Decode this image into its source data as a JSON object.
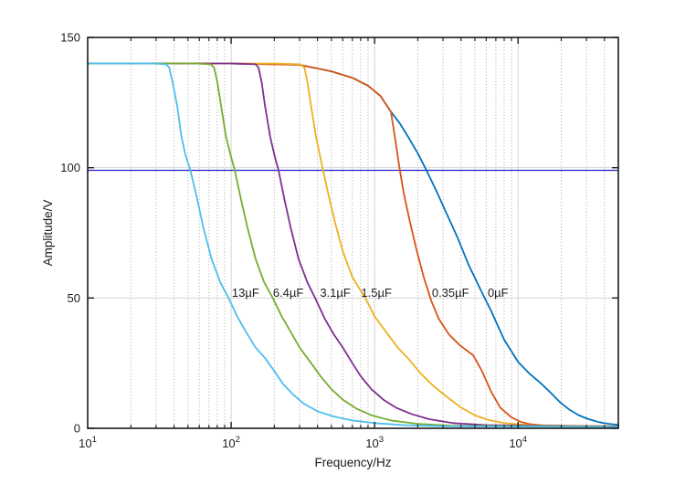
{
  "figure": {
    "background": "#ffffff",
    "axis_color": "#1a1a1a",
    "text_color": "#1c1c1c"
  },
  "chart_data": {
    "type": "line",
    "title": "",
    "xlabel": "Frequency/Hz",
    "ylabel": "Amplitude/V",
    "x_scale": "log",
    "xlim": [
      10,
      50000
    ],
    "ylim": [
      0,
      150
    ],
    "x_major_ticks": [
      10,
      100,
      1000,
      10000
    ],
    "x_minor_multipliers": [
      2,
      3,
      4,
      5,
      6,
      7,
      8,
      9
    ],
    "y_ticks": [
      0,
      50,
      100,
      150
    ],
    "grid": {
      "x_major": [
        100,
        1000,
        10000
      ],
      "y_major": [
        50,
        100
      ],
      "major_color": "#d4d4d4",
      "minor_color": "#a8a8a8",
      "minor_style": "dotted"
    },
    "reference_line": {
      "orientation": "horizontal",
      "value": 99,
      "color": "#2323cc"
    },
    "legend_position": "inline-labels",
    "series": [
      {
        "name": "0µF",
        "color": "#0072BD",
        "points": [
          [
            10,
            140
          ],
          [
            100,
            140
          ],
          [
            200,
            139.8
          ],
          [
            300,
            139.5
          ],
          [
            500,
            137
          ],
          [
            700,
            134.5
          ],
          [
            900,
            131.5
          ],
          [
            1100,
            127.5
          ],
          [
            1300,
            121.5
          ],
          [
            1500,
            117
          ],
          [
            1750,
            111
          ],
          [
            2000,
            105.5
          ],
          [
            2300,
            99
          ],
          [
            2700,
            91
          ],
          [
            3200,
            82
          ],
          [
            3800,
            73
          ],
          [
            4500,
            63
          ],
          [
            5500,
            53
          ],
          [
            6500,
            45
          ],
          [
            8000,
            34
          ],
          [
            10000,
            25.5
          ],
          [
            12000,
            21
          ],
          [
            14600,
            17
          ],
          [
            17000,
            13.5
          ],
          [
            19600,
            10
          ],
          [
            23000,
            7
          ],
          [
            26500,
            5
          ],
          [
            31000,
            3.5
          ],
          [
            37000,
            2.3
          ],
          [
            43000,
            1.7
          ],
          [
            50000,
            1.3
          ]
        ]
      },
      {
        "name": "0.35µF",
        "color": "#D95319",
        "points": [
          [
            10,
            140
          ],
          [
            100,
            140
          ],
          [
            300,
            139.5
          ],
          [
            500,
            137
          ],
          [
            700,
            134.5
          ],
          [
            900,
            131.5
          ],
          [
            1100,
            127.5
          ],
          [
            1300,
            121.5
          ],
          [
            1400,
            110
          ],
          [
            1500,
            99
          ],
          [
            1600,
            90
          ],
          [
            1750,
            80
          ],
          [
            1950,
            69
          ],
          [
            2200,
            58
          ],
          [
            2480,
            49
          ],
          [
            2800,
            42
          ],
          [
            3300,
            36
          ],
          [
            3900,
            32
          ],
          [
            4870,
            28
          ],
          [
            5600,
            22
          ],
          [
            6500,
            14
          ],
          [
            7500,
            8
          ],
          [
            9000,
            4.2
          ],
          [
            10500,
            2.4
          ],
          [
            12000,
            1.6
          ],
          [
            15000,
            1.1
          ],
          [
            20000,
            0.9
          ],
          [
            50000,
            0.8
          ]
        ]
      },
      {
        "name": "1.5µF",
        "color": "#EDB120",
        "points": [
          [
            10,
            140
          ],
          [
            200,
            140
          ],
          [
            300,
            139.7
          ],
          [
            324,
            138.5
          ],
          [
            340,
            133
          ],
          [
            360,
            124
          ],
          [
            390,
            112
          ],
          [
            415,
            105
          ],
          [
            437,
            99
          ],
          [
            480,
            89
          ],
          [
            530,
            79
          ],
          [
            600,
            68
          ],
          [
            700,
            58
          ],
          [
            860,
            50
          ],
          [
            1000,
            43
          ],
          [
            1200,
            37
          ],
          [
            1450,
            31
          ],
          [
            1700,
            27
          ],
          [
            2100,
            21
          ],
          [
            2600,
            16
          ],
          [
            3200,
            12
          ],
          [
            4000,
            8
          ],
          [
            5000,
            5
          ],
          [
            6200,
            3.2
          ],
          [
            8000,
            2
          ],
          [
            12000,
            1.2
          ],
          [
            50000,
            0.7
          ]
        ]
      },
      {
        "name": "3.1µF",
        "color": "#7E2F8E",
        "points": [
          [
            10,
            140
          ],
          [
            100,
            140
          ],
          [
            148,
            139.7
          ],
          [
            155,
            138.5
          ],
          [
            163,
            133
          ],
          [
            172,
            124
          ],
          [
            187,
            112
          ],
          [
            200,
            105
          ],
          [
            214,
            99
          ],
          [
            235,
            88
          ],
          [
            260,
            77
          ],
          [
            295,
            65
          ],
          [
            340,
            56
          ],
          [
            385,
            50
          ],
          [
            450,
            42
          ],
          [
            520,
            36
          ],
          [
            600,
            31
          ],
          [
            700,
            25
          ],
          [
            800,
            20
          ],
          [
            950,
            15
          ],
          [
            1150,
            11
          ],
          [
            1400,
            8
          ],
          [
            1800,
            5.5
          ],
          [
            2400,
            3.5
          ],
          [
            3500,
            2
          ],
          [
            6000,
            1.2
          ],
          [
            50000,
            0.7
          ]
        ]
      },
      {
        "name": "6.4µF",
        "color": "#77AC30",
        "points": [
          [
            10,
            140
          ],
          [
            55,
            140
          ],
          [
            72,
            139.7
          ],
          [
            76,
            138.5
          ],
          [
            80,
            133
          ],
          [
            85,
            124
          ],
          [
            92,
            112
          ],
          [
            99,
            105
          ],
          [
            106,
            99
          ],
          [
            117,
            88
          ],
          [
            130,
            77
          ],
          [
            148,
            65
          ],
          [
            170,
            56
          ],
          [
            195,
            50
          ],
          [
            225,
            43
          ],
          [
            260,
            37
          ],
          [
            300,
            31
          ],
          [
            350,
            26
          ],
          [
            420,
            20
          ],
          [
            500,
            15
          ],
          [
            600,
            11
          ],
          [
            750,
            7.5
          ],
          [
            950,
            5
          ],
          [
            1300,
            3
          ],
          [
            2000,
            1.7
          ],
          [
            3500,
            1
          ],
          [
            50000,
            0.6
          ]
        ]
      },
      {
        "name": "13µF",
        "color": "#4DBEEE",
        "points": [
          [
            10,
            140
          ],
          [
            28,
            140
          ],
          [
            35,
            139.7
          ],
          [
            37,
            138.5
          ],
          [
            39,
            133
          ],
          [
            42,
            124
          ],
          [
            45,
            112
          ],
          [
            48,
            105
          ],
          [
            52,
            99
          ],
          [
            58,
            88
          ],
          [
            64,
            77
          ],
          [
            73,
            65
          ],
          [
            84,
            56
          ],
          [
            96,
            50
          ],
          [
            110,
            43
          ],
          [
            127,
            37
          ],
          [
            148,
            31
          ],
          [
            172,
            27
          ],
          [
            200,
            22
          ],
          [
            230,
            17
          ],
          [
            270,
            13
          ],
          [
            320,
            9.5
          ],
          [
            400,
            6.5
          ],
          [
            520,
            4.5
          ],
          [
            700,
            3
          ],
          [
            1000,
            2
          ],
          [
            1600,
            1.2
          ],
          [
            3000,
            0.8
          ],
          [
            50000,
            0.5
          ]
        ]
      }
    ],
    "curve_labels": [
      {
        "text": "13µF",
        "f": 126,
        "v": 52
      },
      {
        "text": "6.4µF",
        "f": 250,
        "v": 52
      },
      {
        "text": "3.1µF",
        "f": 532,
        "v": 52
      },
      {
        "text": "1.5µF",
        "f": 1030,
        "v": 52
      },
      {
        "text": "0.35µF",
        "f": 3380,
        "v": 52
      },
      {
        "text": "0µF",
        "f": 7250,
        "v": 52
      }
    ]
  }
}
